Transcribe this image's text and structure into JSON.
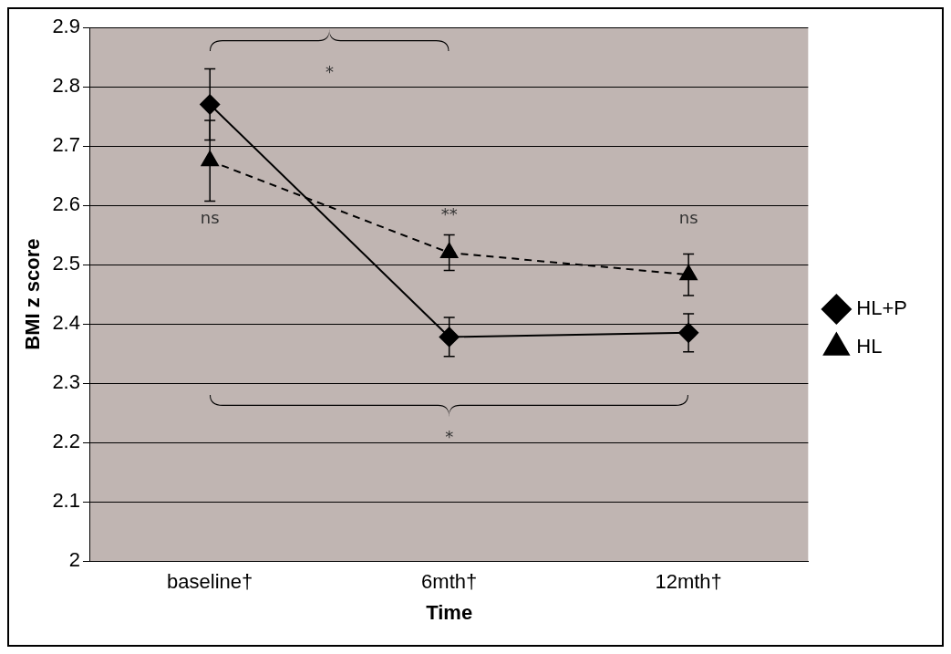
{
  "chart_data": {
    "type": "line",
    "xlabel": "Time",
    "ylabel": "BMI z score",
    "categories": [
      "baseline†",
      "6mth†",
      "12mth†"
    ],
    "series": [
      {
        "name": "HL+P",
        "color": "#000000",
        "values": [
          2.77,
          2.378,
          2.385
        ],
        "errors": [
          0.06,
          0.033,
          0.032
        ],
        "marker": "diamond",
        "line_style": "solid"
      },
      {
        "name": "HL",
        "color": "#000000",
        "values": [
          2.675,
          2.52,
          2.483
        ],
        "errors": [
          0.068,
          0.03,
          0.035
        ],
        "marker": "triangle",
        "line_style": "dashed"
      }
    ],
    "ylim": [
      2,
      2.9
    ],
    "yticks": [
      2,
      2.1,
      2.2,
      2.3,
      2.4,
      2.5,
      2.6,
      2.7,
      2.8,
      2.9
    ],
    "grid": "y",
    "legend": "right",
    "annotations": [
      "*",
      "ns",
      "**",
      "ns",
      "*"
    ]
  }
}
